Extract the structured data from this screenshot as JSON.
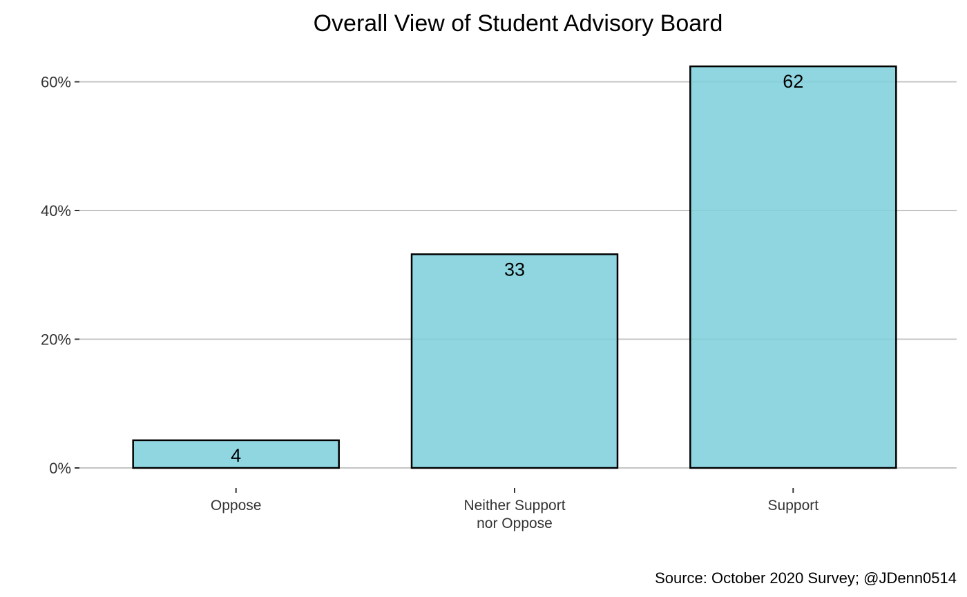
{
  "chart_data": {
    "type": "bar",
    "title": "Overall View of Student Advisory Board",
    "caption": "Source: October 2020 Survey; @JDenn0514",
    "categories": [
      [
        "Oppose"
      ],
      [
        "Neither Support",
        "nor Oppose"
      ],
      [
        "Support"
      ]
    ],
    "values": [
      4.3,
      33.2,
      62.4
    ],
    "value_labels": [
      "4",
      "33",
      "62"
    ],
    "yticks": [
      0,
      20,
      40,
      60
    ],
    "ytick_labels": [
      "0%",
      "20%",
      "40%",
      "60%"
    ],
    "ylim": [
      0,
      65
    ],
    "grid": "horizontal",
    "legend": "none",
    "colors": {
      "bar_fill": "#7fd0dc",
      "bar_stroke": "#000000",
      "grid": "#c4c4c4",
      "axis_text": "#333333"
    }
  }
}
